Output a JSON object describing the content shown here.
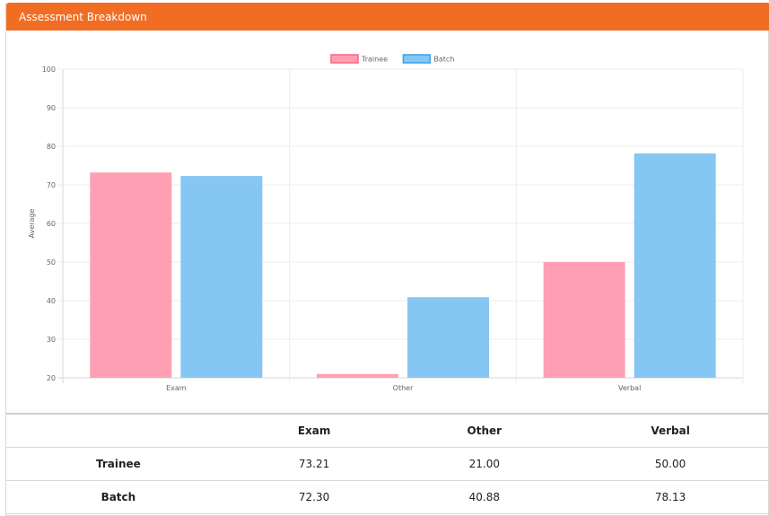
{
  "panel": {
    "title": "Assessment Breakdown"
  },
  "colors": {
    "header": "#f26d24",
    "trainee_fill": "#ff9fb4",
    "trainee_stroke": "#ff6384",
    "batch_fill": "#86c6f2",
    "batch_stroke": "#36a2eb"
  },
  "chart_data": {
    "type": "bar",
    "categories": [
      "Exam",
      "Other",
      "Verbal"
    ],
    "series": [
      {
        "name": "Trainee",
        "values": [
          73.21,
          21.0,
          50.0
        ]
      },
      {
        "name": "Batch",
        "values": [
          72.3,
          40.88,
          78.13
        ]
      }
    ],
    "ylabel": "Average",
    "xlabel": "",
    "ylim": [
      20,
      100
    ],
    "yticks": [
      20,
      30,
      40,
      50,
      60,
      70,
      80,
      90,
      100
    ],
    "legend": "top-center",
    "grid": true
  },
  "table": {
    "headers": [
      "",
      "Exam",
      "Other",
      "Verbal"
    ],
    "rows": [
      {
        "label": "Trainee",
        "values": [
          "73.21",
          "21.00",
          "50.00"
        ]
      },
      {
        "label": "Batch",
        "values": [
          "72.30",
          "40.88",
          "78.13"
        ]
      }
    ]
  }
}
